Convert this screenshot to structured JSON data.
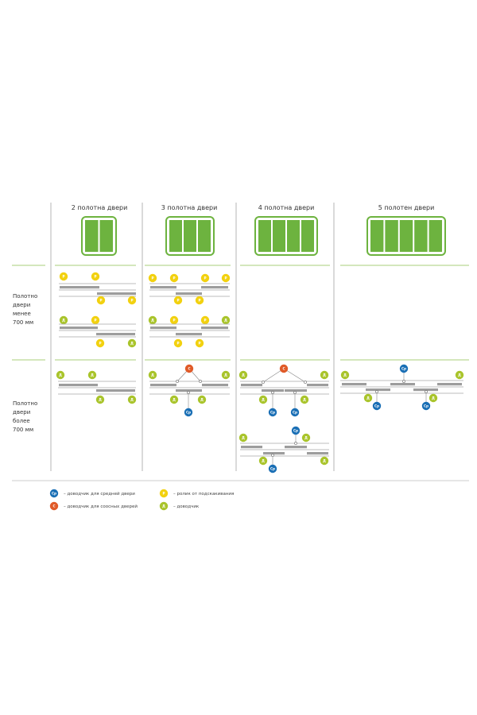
{
  "columns": [
    {
      "title": "2 полотна двери",
      "panels": 2
    },
    {
      "title": "3 полотна двери",
      "panels": 3
    },
    {
      "title": "4 полотна двери",
      "panels": 4
    },
    {
      "title": "5 полотен двери",
      "panels": 5
    }
  ],
  "rows": [
    {
      "label": [
        "Полотно",
        "двери",
        "менее",
        "700 мм"
      ]
    },
    {
      "label": [
        "Полотно",
        "двери",
        "более",
        "700 мм"
      ]
    }
  ],
  "badges": {
    "middle": {
      "text": "Ср",
      "color": "#1a6fb5"
    },
    "coaxial": {
      "text": "С",
      "color": "#e05a28"
    },
    "roller": {
      "text": "Р",
      "color": "#f2d10f"
    },
    "closer": {
      "text": "Д",
      "color": "#a9c42b"
    }
  },
  "legend": [
    {
      "badge": "middle",
      "text": "– доводчик для средней двери"
    },
    {
      "badge": "coaxial",
      "text": "– доводчик для соосных дверей"
    },
    {
      "badge": "roller",
      "text": "– ролик от подскакивания"
    },
    {
      "badge": "closer",
      "text": "– доводчик"
    }
  ],
  "colors": {
    "door_green": "#6db33f",
    "divider_green": "#a9cf7a",
    "rail_gray": "#a8a8a8",
    "bar_gray": "#9d9d9d"
  }
}
